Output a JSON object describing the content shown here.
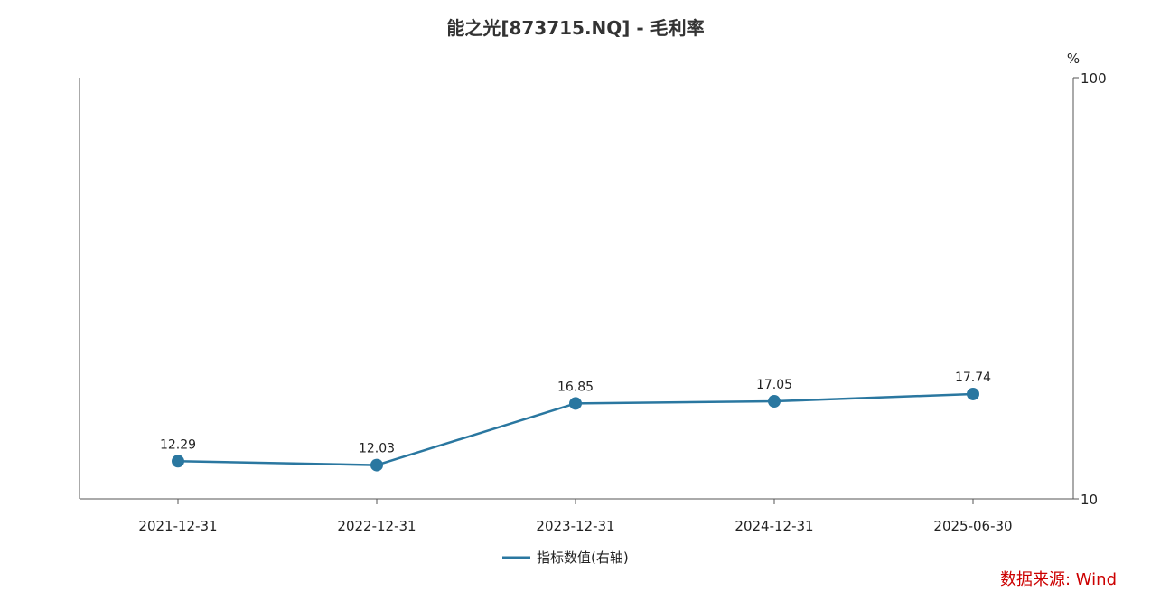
{
  "chart_data": {
    "type": "line",
    "title": "能之光[873715.NQ] - 毛利率",
    "categories": [
      "2021-12-31",
      "2022-12-31",
      "2023-12-31",
      "2024-12-31",
      "2025-06-30"
    ],
    "series": [
      {
        "name": "指标数值(右轴)",
        "values": [
          12.29,
          12.03,
          16.85,
          17.05,
          17.74
        ],
        "color": "#2a77a0"
      }
    ],
    "y_axis": {
      "side": "right",
      "scale": "log",
      "unit": "%",
      "ylim": [
        10,
        100
      ],
      "ticks": [
        "10",
        "100"
      ]
    },
    "grid": false,
    "legend": "bottom-center",
    "data_labels": [
      "12.29",
      "12.03",
      "16.85",
      "17.05",
      "17.74"
    ]
  },
  "source_text": "数据来源: Wind",
  "colors": {
    "series": "#2a77a0",
    "source": "#cc0000",
    "axis": "#555555"
  }
}
